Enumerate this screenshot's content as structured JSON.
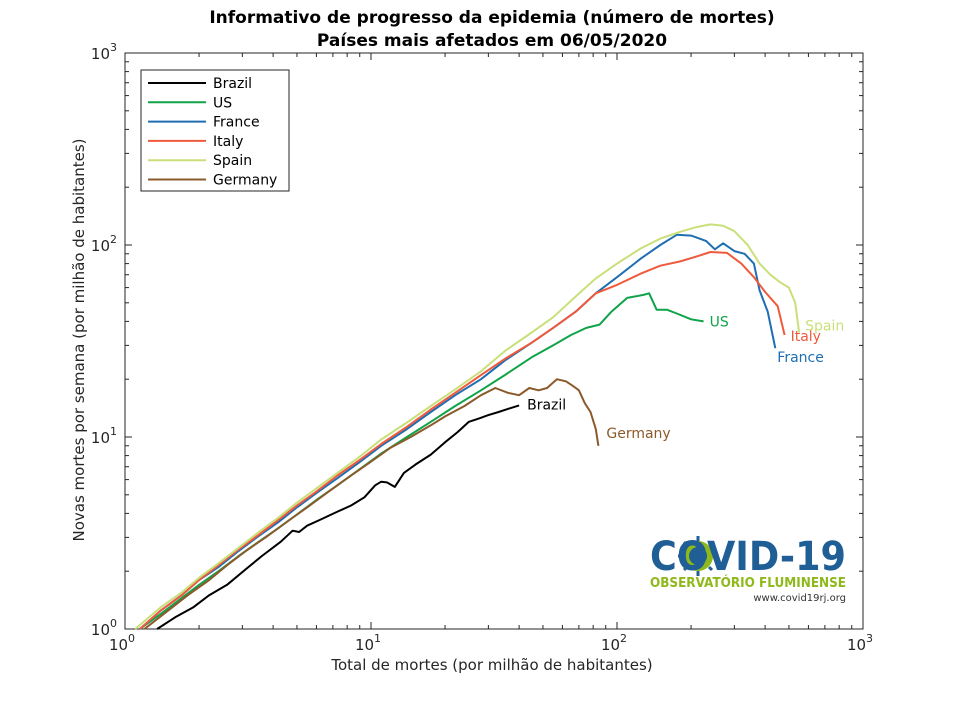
{
  "chart_data": {
    "type": "line",
    "title": "Informativo de progresso da epidemia (número de mortes)",
    "subtitle": "Países mais afetados em 06/05/2020",
    "xlabel": "Total de mortes (por milhão de habitantes)",
    "ylabel": "Novas mortes por semana (por milhão de habitantes)",
    "xscale": "log",
    "yscale": "log",
    "xlim": [
      1,
      1000
    ],
    "ylim": [
      1,
      1000
    ],
    "xticks": [
      {
        "base": "10",
        "exp": "0"
      },
      {
        "base": "10",
        "exp": "1"
      },
      {
        "base": "10",
        "exp": "2"
      },
      {
        "base": "10",
        "exp": "3"
      }
    ],
    "yticks": [
      {
        "base": "10",
        "exp": "0"
      },
      {
        "base": "10",
        "exp": "1"
      },
      {
        "base": "10",
        "exp": "2"
      },
      {
        "base": "10",
        "exp": "3"
      }
    ],
    "grid": false,
    "legend_position": "top-left",
    "series": [
      {
        "name": "Brazil",
        "color": "#000000",
        "end_label": "Brazil",
        "x": [
          1.35,
          1.6,
          1.9,
          2.2,
          2.6,
          3.1,
          3.6,
          4.3,
          4.8,
          5.1,
          5.5,
          6.2,
          7.2,
          8.3,
          9.4,
          10.4,
          11.0,
          11.6,
          12.5,
          13.6,
          15.2,
          17.5,
          20.0,
          22.5,
          25.0,
          27.5,
          30.0,
          33.0,
          36.0,
          40.0
        ],
        "y": [
          1.0,
          1.15,
          1.3,
          1.5,
          1.7,
          2.05,
          2.4,
          2.85,
          3.25,
          3.2,
          3.45,
          3.7,
          4.05,
          4.4,
          4.85,
          5.6,
          5.85,
          5.8,
          5.5,
          6.5,
          7.2,
          8.1,
          9.4,
          10.6,
          12.0,
          12.5,
          13.0,
          13.5,
          14.0,
          14.6
        ]
      },
      {
        "name": "US",
        "color": "#10a34a",
        "end_label": "US",
        "x": [
          1.15,
          1.4,
          1.7,
          2.0,
          2.4,
          2.9,
          3.5,
          4.2,
          5.0,
          6.0,
          7.3,
          9.0,
          11.0,
          14.0,
          17.5,
          22.0,
          28.0,
          35.0,
          45.0,
          55.0,
          65.0,
          75.0,
          85.0,
          95.0,
          110.0,
          128.0,
          135.0,
          145.0,
          160.0,
          175.0,
          200.0,
          225.0
        ],
        "y": [
          1.0,
          1.2,
          1.45,
          1.7,
          2.0,
          2.4,
          2.85,
          3.35,
          3.95,
          4.7,
          5.6,
          6.8,
          8.2,
          10.0,
          12.0,
          14.5,
          17.5,
          21.0,
          26.0,
          30.0,
          34.0,
          37.0,
          38.5,
          45.0,
          53.0,
          55.0,
          56.0,
          46.0,
          46.0,
          44.0,
          41.0,
          40.0
        ]
      },
      {
        "name": "France",
        "color": "#1f6eb3",
        "end_label": "France",
        "x": [
          1.15,
          1.4,
          1.7,
          2.0,
          2.4,
          2.9,
          3.5,
          4.2,
          5.0,
          6.0,
          7.3,
          9.0,
          11.0,
          14.0,
          17.5,
          22.0,
          28.0,
          35.0,
          45.0,
          55.0,
          68.0,
          82.0,
          100.0,
          125.0,
          150.0,
          175.0,
          200.0,
          230.0,
          250.0,
          270.0,
          300.0,
          330.0,
          360.0,
          380.0,
          410.0,
          440.0
        ],
        "y": [
          1.0,
          1.25,
          1.5,
          1.8,
          2.1,
          2.55,
          3.05,
          3.6,
          4.3,
          5.1,
          6.1,
          7.4,
          9.0,
          11.0,
          13.5,
          16.5,
          20.0,
          25.0,
          31.0,
          37.0,
          45.0,
          56.0,
          68.0,
          85.0,
          100.0,
          113.0,
          112.0,
          105.0,
          95.0,
          102.0,
          93.0,
          90.0,
          80.0,
          58.0,
          45.0,
          29.0
        ]
      },
      {
        "name": "Italy",
        "color": "#f05a3c",
        "end_label": "Italy",
        "x": [
          1.15,
          1.4,
          1.7,
          2.0,
          2.4,
          2.9,
          3.5,
          4.2,
          5.0,
          6.0,
          7.3,
          9.0,
          11.0,
          14.0,
          17.5,
          22.0,
          28.0,
          35.0,
          45.0,
          55.0,
          68.0,
          82.0,
          100.0,
          125.0,
          150.0,
          180.0,
          210.0,
          240.0,
          280.0,
          320.0,
          360.0,
          400.0,
          450.0,
          480.0
        ],
        "y": [
          1.0,
          1.25,
          1.5,
          1.8,
          2.15,
          2.6,
          3.1,
          3.7,
          4.4,
          5.2,
          6.3,
          7.6,
          9.2,
          11.3,
          13.9,
          17.0,
          21.0,
          25.5,
          31.0,
          37.0,
          45.0,
          56.0,
          62.0,
          71.0,
          78.0,
          82.0,
          87.0,
          92.0,
          91.0,
          80.0,
          68.0,
          57.0,
          48.0,
          34.0
        ]
      },
      {
        "name": "Spain",
        "color": "#c9e07a",
        "end_label": "Spain",
        "x": [
          1.1,
          1.4,
          1.7,
          2.0,
          2.4,
          2.9,
          3.5,
          4.2,
          5.0,
          6.0,
          7.3,
          9.0,
          11.0,
          14.0,
          17.5,
          22.0,
          28.0,
          35.0,
          45.0,
          55.0,
          68.0,
          82.0,
          100.0,
          125.0,
          150.0,
          180.0,
          210.0,
          240.0,
          270.0,
          300.0,
          340.0,
          380.0,
          420.0,
          460.0,
          500.0,
          530.0,
          550.0
        ],
        "y": [
          1.0,
          1.3,
          1.55,
          1.85,
          2.2,
          2.65,
          3.2,
          3.8,
          4.55,
          5.4,
          6.5,
          7.9,
          9.7,
          11.9,
          14.5,
          17.7,
          22.0,
          28.0,
          35.0,
          42.0,
          54.0,
          67.0,
          80.0,
          96.0,
          108.0,
          117.0,
          124.0,
          128.0,
          126.0,
          118.0,
          100.0,
          80.0,
          70.0,
          64.0,
          60.0,
          50.0,
          35.0
        ]
      },
      {
        "name": "Germany",
        "color": "#8b5a2b",
        "end_label": "Germany",
        "x": [
          1.2,
          1.5,
          1.8,
          2.2,
          2.6,
          3.1,
          3.8,
          4.6,
          5.5,
          6.6,
          8.0,
          9.8,
          12.0,
          14.5,
          17.5,
          20.0,
          24.0,
          28.0,
          32.0,
          36.0,
          40.0,
          44.0,
          48.0,
          52.0,
          57.0,
          62.0,
          66.0,
          70.0,
          74.0,
          78.0,
          82.0,
          84.0
        ],
        "y": [
          1.0,
          1.25,
          1.5,
          1.8,
          2.15,
          2.55,
          3.05,
          3.65,
          4.3,
          5.1,
          6.1,
          7.3,
          8.8,
          10.0,
          11.5,
          12.8,
          14.5,
          16.5,
          18.0,
          17.0,
          16.5,
          18.0,
          17.5,
          18.0,
          20.0,
          19.5,
          18.5,
          17.5,
          15.0,
          13.5,
          11.0,
          9.0
        ]
      }
    ]
  },
  "logo": {
    "title": "COVID-19",
    "subtitle": "OBSERVATÓRIO FLUMINENSE",
    "url": "www.covid19rj.org"
  }
}
